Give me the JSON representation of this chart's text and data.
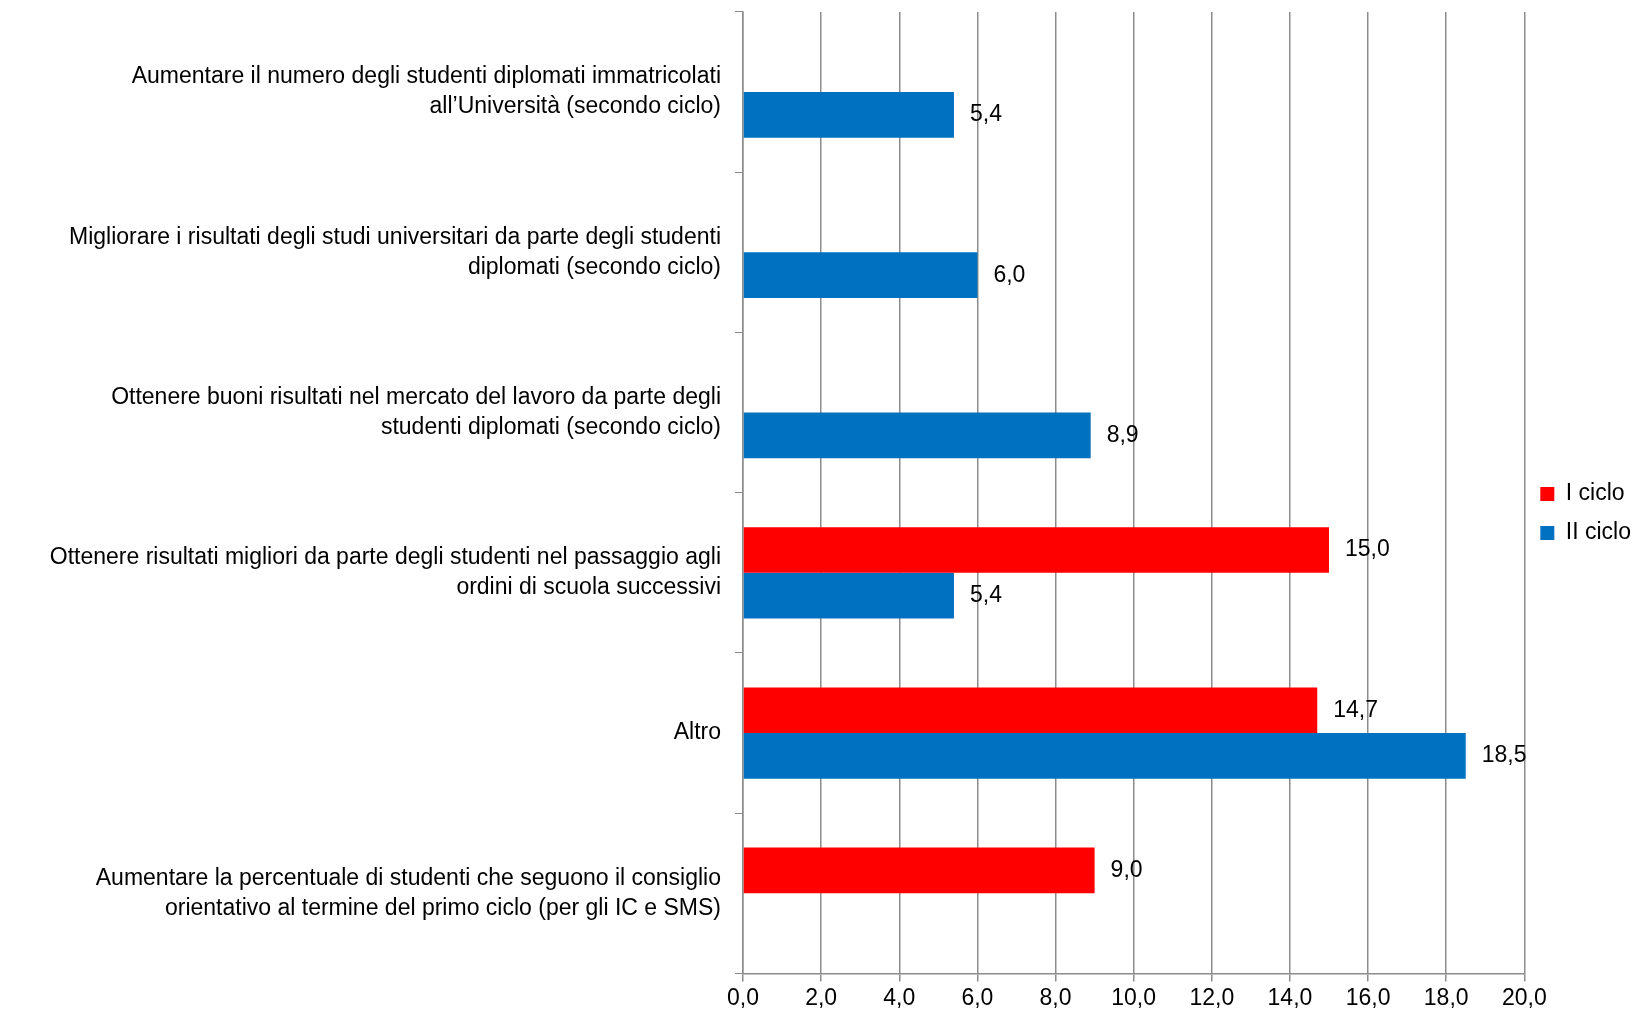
{
  "chart_data": {
    "type": "bar",
    "orientation": "horizontal",
    "categories": [
      "Aumentare il numero degli studenti diplomati immatricolati all’Università (secondo ciclo)",
      "Migliorare i risultati degli studi universitari da parte degli studenti diplomati (secondo ciclo)",
      "Ottenere buoni risultati nel mercato del lavoro da parte degli studenti diplomati (secondo ciclo)",
      "Ottenere risultati migliori da parte degli studenti nel passaggio agli ordini di scuola successivi",
      "Altro",
      "Aumentare la percentuale di studenti che seguono il consiglio orientativo al termine del primo ciclo (per gli IC e SMS)"
    ],
    "series": [
      {
        "name": "I ciclo",
        "color": "#ff0000",
        "values": [
          null,
          null,
          null,
          15.0,
          14.7,
          9.0
        ],
        "value_labels": [
          null,
          null,
          null,
          "15,0",
          "14,7",
          "9,0"
        ]
      },
      {
        "name": "II ciclo",
        "color": "#0070c0",
        "values": [
          5.4,
          6.0,
          8.9,
          5.4,
          18.5,
          null
        ],
        "value_labels": [
          "5,4",
          "6,0",
          "8,9",
          "5,4",
          "18,5",
          null
        ]
      }
    ],
    "xlim": [
      0,
      20
    ],
    "xticks": [
      {
        "value": 0,
        "label": "0,0"
      },
      {
        "value": 2,
        "label": "2,0"
      },
      {
        "value": 4,
        "label": "4,0"
      },
      {
        "value": 6,
        "label": "6,0"
      },
      {
        "value": 8,
        "label": "8,0"
      },
      {
        "value": 10,
        "label": "10,0"
      },
      {
        "value": 12,
        "label": "12,0"
      },
      {
        "value": 14,
        "label": "14,0"
      },
      {
        "value": 16,
        "label": "16,0"
      },
      {
        "value": 18,
        "label": "18,0"
      },
      {
        "value": 20,
        "label": "20,0"
      }
    ],
    "grid": "x",
    "legend": "right"
  }
}
